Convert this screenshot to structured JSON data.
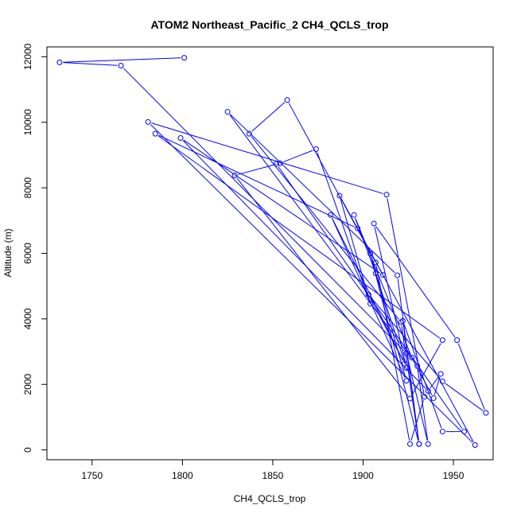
{
  "chart_data": {
    "type": "line",
    "title": "ATOM2 Northeast_Pacific_2 CH4_QCLS_trop",
    "xlabel": "CH4_QCLS_trop",
    "ylabel": "Altitude (m)",
    "xlim": [
      1725,
      1972
    ],
    "ylim": [
      -300,
      12300
    ],
    "x_ticks": [
      1750,
      1800,
      1850,
      1900,
      1950
    ],
    "y_ticks": [
      0,
      2000,
      4000,
      6000,
      8000,
      10000,
      12000
    ],
    "grid": false,
    "series_color": "#0000ff",
    "marker": "open-circle",
    "series": [
      {
        "points": [
          [
            1801,
            11970
          ],
          [
            1732,
            11830
          ],
          [
            1766,
            11730
          ],
          [
            1924,
            2950
          ],
          [
            1936,
            180
          ],
          [
            1930,
            2560
          ],
          [
            1825,
            10320
          ],
          [
            1919,
            5330
          ],
          [
            1931,
            180
          ],
          [
            1921,
            3900
          ],
          [
            1837,
            9650
          ],
          [
            1858,
            10680
          ],
          [
            1907,
            5720
          ],
          [
            1926,
            180
          ],
          [
            1934,
            1620
          ],
          [
            1913,
            7790
          ],
          [
            1781,
            10010
          ],
          [
            1962,
            150
          ],
          [
            1897,
            6760
          ],
          [
            1785,
            9650
          ],
          [
            1944,
            3350
          ],
          [
            1926,
            1570
          ],
          [
            1829,
            8380
          ],
          [
            1854,
            8750
          ],
          [
            1874,
            9180
          ],
          [
            1904,
            4460
          ],
          [
            1887,
            7760
          ],
          [
            1911,
            5340
          ],
          [
            1799,
            9520
          ],
          [
            1936,
            1800
          ],
          [
            1943,
            2320
          ],
          [
            1939,
            1580
          ],
          [
            1927,
            2820
          ],
          [
            1895,
            7170
          ],
          [
            1907,
            5390
          ],
          [
            1924,
            2500
          ],
          [
            1906,
            6910
          ],
          [
            1952,
            3350
          ],
          [
            1968,
            1130
          ],
          [
            1944,
            2090
          ],
          [
            1903,
            4740
          ],
          [
            1923,
            2630
          ],
          [
            1882,
            7170
          ],
          [
            1924,
            2110
          ],
          [
            1904,
            5990
          ],
          [
            1931,
            180
          ],
          [
            1922,
            3940
          ],
          [
            1944,
            560
          ],
          [
            1956,
            560
          ],
          [
            1852,
            8730
          ]
        ]
      }
    ]
  }
}
